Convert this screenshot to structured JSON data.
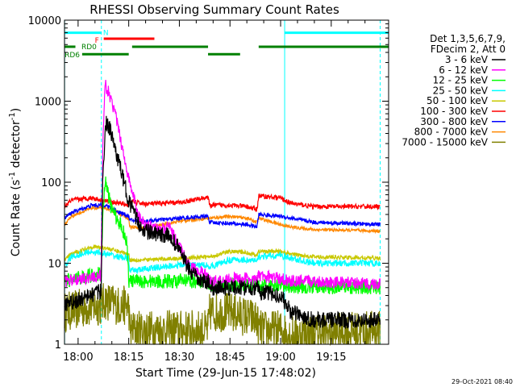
{
  "chart_data": {
    "type": "line",
    "title": "RHESSI Observing Summary Count Rates",
    "xlabel": "Start Time (29-Jun-15 17:48:02)",
    "ylabel_prefix": "Count Rate (s",
    "ylabel_exp": "-1",
    "ylabel_mid": " detector",
    "ylabel_suffix": ")",
    "yscale": "log",
    "ylim": [
      1,
      10000
    ],
    "xlim_minutes": [
      -4.03,
      92.0
    ],
    "x_ticks": [
      {
        "label": "18:00",
        "minutes": 0
      },
      {
        "label": "18:15",
        "minutes": 15
      },
      {
        "label": "18:30",
        "minutes": 30
      },
      {
        "label": "18:45",
        "minutes": 45
      },
      {
        "label": "19:00",
        "minutes": 60
      },
      {
        "label": "19:15",
        "minutes": 75
      }
    ],
    "y_ticks": [
      {
        "label": "1",
        "value": 1
      },
      {
        "label": "10",
        "value": 10
      },
      {
        "label": "100",
        "value": 100
      },
      {
        "label": "1000",
        "value": 1000
      },
      {
        "label": "10000",
        "value": 10000
      }
    ],
    "legend_header": [
      "Det 1,3,5,6,7,9,",
      "FDecim 2, Att 0"
    ],
    "series": [
      {
        "name": "3 - 6 keV",
        "color": "#000000",
        "noise": 0.2,
        "points": [
          [
            -4,
            3
          ],
          [
            6.8,
            4.5
          ],
          [
            7.3,
            100
          ],
          [
            8.2,
            560
          ],
          [
            9.5,
            440
          ],
          [
            12,
            180
          ],
          [
            15,
            60
          ],
          [
            18,
            30
          ],
          [
            20,
            25
          ],
          [
            24,
            22
          ],
          [
            27,
            22
          ],
          [
            30,
            15
          ],
          [
            33,
            8
          ],
          [
            36,
            6
          ],
          [
            38.5,
            6
          ],
          [
            39,
            5
          ],
          [
            45,
            5
          ],
          [
            50,
            5
          ],
          [
            53,
            5
          ],
          [
            53.5,
            4.5
          ],
          [
            60,
            4
          ],
          [
            63,
            2.5
          ],
          [
            70,
            2
          ],
          [
            90,
            2
          ]
        ]
      },
      {
        "name": "6 - 12 keV",
        "color": "#ff00ff",
        "noise": 0.15,
        "points": [
          [
            -4,
            6
          ],
          [
            6.8,
            7
          ],
          [
            7.3,
            250
          ],
          [
            8,
            1600
          ],
          [
            9,
            1300
          ],
          [
            11,
            700
          ],
          [
            13,
            280
          ],
          [
            15,
            110
          ],
          [
            18,
            38
          ],
          [
            20,
            30
          ],
          [
            24,
            26
          ],
          [
            27,
            28
          ],
          [
            30,
            16
          ],
          [
            33,
            9
          ],
          [
            36,
            8
          ],
          [
            38.5,
            7
          ],
          [
            39,
            6
          ],
          [
            45,
            6.5
          ],
          [
            50,
            6.5
          ],
          [
            53,
            6
          ],
          [
            53.5,
            7
          ],
          [
            60,
            6.5
          ],
          [
            63,
            6
          ],
          [
            70,
            6
          ],
          [
            90,
            5.5
          ]
        ]
      },
      {
        "name": "12 - 25 keV",
        "color": "#00ff00",
        "noise": 0.18,
        "points": [
          [
            -4,
            6
          ],
          [
            6.8,
            7.5
          ],
          [
            7.3,
            40
          ],
          [
            8,
            105
          ],
          [
            10,
            45
          ],
          [
            13,
            28
          ],
          [
            14.5,
            18
          ],
          [
            15,
            6
          ],
          [
            20,
            6
          ],
          [
            30,
            6
          ],
          [
            38.5,
            6
          ],
          [
            39,
            5.5
          ],
          [
            53,
            5.5
          ],
          [
            53.5,
            5.2
          ],
          [
            90,
            5
          ]
        ]
      },
      {
        "name": "25 - 50 keV",
        "color": "#00ffff",
        "noise": 0.08,
        "points": [
          [
            -4,
            9
          ],
          [
            -2,
            12
          ],
          [
            4,
            14
          ],
          [
            8,
            13
          ],
          [
            12,
            12
          ],
          [
            15,
            11.5
          ],
          [
            15.3,
            8
          ],
          [
            20,
            8.5
          ],
          [
            30,
            9.5
          ],
          [
            38.5,
            9.5
          ],
          [
            39,
            9
          ],
          [
            45,
            11
          ],
          [
            50,
            11
          ],
          [
            53,
            10.5
          ],
          [
            53.5,
            12
          ],
          [
            60,
            12.5
          ],
          [
            63,
            11.5
          ],
          [
            70,
            10
          ],
          [
            90,
            10
          ]
        ]
      },
      {
        "name": "50 - 100 keV",
        "color": "#c8c800",
        "noise": 0.05,
        "points": [
          [
            -4,
            11
          ],
          [
            -2,
            13
          ],
          [
            4,
            16
          ],
          [
            8,
            15.5
          ],
          [
            12,
            14
          ],
          [
            15,
            13
          ],
          [
            15.3,
            11
          ],
          [
            20,
            11
          ],
          [
            30,
            11.5
          ],
          [
            38.5,
            12
          ],
          [
            39,
            12
          ],
          [
            45,
            14
          ],
          [
            50,
            13.5
          ],
          [
            53,
            12.5
          ],
          [
            53.5,
            14
          ],
          [
            60,
            14
          ],
          [
            63,
            13
          ],
          [
            70,
            12
          ],
          [
            90,
            11.5
          ]
        ]
      },
      {
        "name": "100 - 300 keV",
        "color": "#ff0000",
        "noise": 0.06,
        "points": [
          [
            -4,
            50
          ],
          [
            -2,
            60
          ],
          [
            4,
            64
          ],
          [
            7,
            60
          ],
          [
            12,
            55
          ],
          [
            15,
            52
          ],
          [
            15.3,
            58
          ],
          [
            20,
            54
          ],
          [
            30,
            56
          ],
          [
            38,
            65
          ],
          [
            38.5,
            64
          ],
          [
            39,
            52
          ],
          [
            45,
            52
          ],
          [
            50,
            50
          ],
          [
            53,
            46
          ],
          [
            53.5,
            68
          ],
          [
            60,
            64
          ],
          [
            63,
            55
          ],
          [
            70,
            50
          ],
          [
            90,
            50
          ]
        ]
      },
      {
        "name": "300 - 800 keV",
        "color": "#0000ff",
        "noise": 0.05,
        "points": [
          [
            -4,
            36
          ],
          [
            -2,
            42
          ],
          [
            4,
            52
          ],
          [
            8,
            52
          ],
          [
            12,
            43
          ],
          [
            15,
            38
          ],
          [
            15.3,
            34
          ],
          [
            20,
            33
          ],
          [
            30,
            36
          ],
          [
            38.5,
            38
          ],
          [
            39,
            32
          ],
          [
            45,
            31
          ],
          [
            50,
            30
          ],
          [
            53,
            28
          ],
          [
            53.5,
            40
          ],
          [
            60,
            38
          ],
          [
            63,
            36
          ],
          [
            70,
            32
          ],
          [
            90,
            30
          ]
        ]
      },
      {
        "name": "800 - 7000 keV",
        "color": "#ff8800",
        "noise": 0.04,
        "points": [
          [
            -4,
            30
          ],
          [
            -2,
            38
          ],
          [
            4,
            48
          ],
          [
            8,
            48
          ],
          [
            12,
            42
          ],
          [
            15,
            35
          ],
          [
            15.3,
            28
          ],
          [
            20,
            27
          ],
          [
            30,
            33
          ],
          [
            38.5,
            36
          ],
          [
            39,
            36
          ],
          [
            45,
            38
          ],
          [
            50,
            36
          ],
          [
            53,
            32
          ],
          [
            53.5,
            36
          ],
          [
            60,
            30
          ],
          [
            63,
            28
          ],
          [
            70,
            26
          ],
          [
            90,
            25
          ]
        ]
      },
      {
        "name": "7000 - 15000 keV",
        "color": "#808000",
        "noise": 0.5,
        "points": [
          [
            -4,
            2.5
          ],
          [
            2,
            2.8
          ],
          [
            6.8,
            3
          ],
          [
            8,
            3.5
          ],
          [
            12,
            3
          ],
          [
            15,
            3
          ],
          [
            15.3,
            1.5
          ],
          [
            20,
            1.5
          ],
          [
            30,
            1.5
          ],
          [
            38.5,
            1.5
          ],
          [
            39,
            2.5
          ],
          [
            45,
            2.5
          ],
          [
            53,
            2
          ],
          [
            53.5,
            1.5
          ],
          [
            60,
            1.5
          ],
          [
            63,
            1.3
          ],
          [
            90,
            1.5
          ]
        ]
      }
    ],
    "flags": [
      {
        "name": "N",
        "color": "#00ffff",
        "level": 7000,
        "segments": [
          [
            -4,
            6.9
          ],
          [
            61.2,
            92.0
          ]
        ]
      },
      {
        "name": "F",
        "color": "#ff0000",
        "level": 5900,
        "segments": [
          [
            7.6,
            22.6
          ]
        ]
      },
      {
        "name": "RD0",
        "color": "#008000",
        "level": 4700,
        "segments": [
          [
            -4,
            -0.8
          ],
          [
            16,
            38.5
          ],
          [
            53.5,
            92.0
          ]
        ]
      },
      {
        "name": "RD6",
        "color": "#008000",
        "level": 3800,
        "segments": [
          [
            1.2,
            15
          ],
          [
            38.5,
            48
          ]
        ]
      }
    ],
    "vertical_markers": [
      {
        "color": "#00ffff",
        "style": "solid",
        "minutes": -4.0
      },
      {
        "color": "#00ffff",
        "style": "dashed",
        "minutes": 6.9
      },
      {
        "color": "#00ffff",
        "style": "solid",
        "minutes": 61.2
      },
      {
        "color": "#00ffff",
        "style": "dashed",
        "minutes": 89.5
      }
    ]
  },
  "footer_timestamp": "29-Oct-2021 08:40"
}
